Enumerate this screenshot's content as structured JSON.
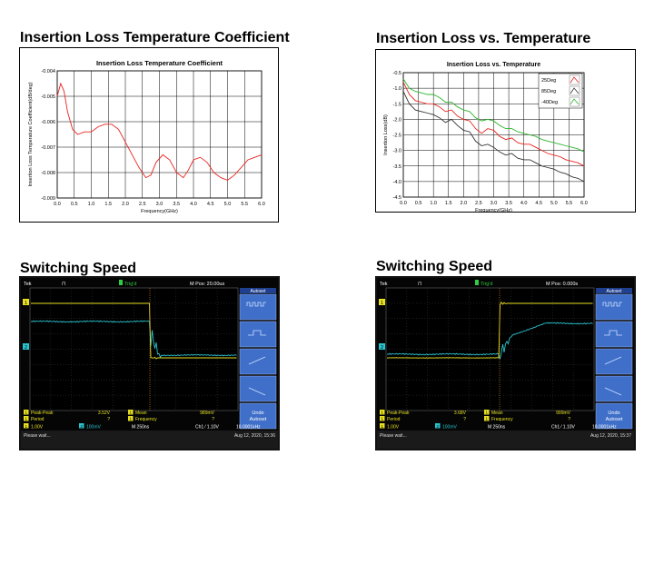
{
  "headings": {
    "coef": "Insertion Loss Temperature Coefficient",
    "temp": "Insertion Loss vs. Temperature",
    "sw1": "Switching Speed",
    "sw2": "Switching Speed"
  },
  "chart_data": [
    {
      "type": "line",
      "title": "Insertion Loss Temperature Coefficient",
      "xlabel": "Frequency(GHz)",
      "ylabel": "Insertion Loss Temperature Coefficient(dB/deg)",
      "xlim": [
        0.0,
        6.0
      ],
      "ylim": [
        -0.009,
        -0.004
      ],
      "x_ticks": [
        "0.0",
        "0.5",
        "1.0",
        "1.5",
        "2.0",
        "2.5",
        "3.0",
        "3.5",
        "4.0",
        "4.5",
        "5.0",
        "5.5",
        "6.0"
      ],
      "y_ticks": [
        "-0.004",
        "-0.005",
        "-0.006",
        "-0.007",
        "-0.008",
        "-0.009"
      ],
      "grid": true,
      "color": "#e8231f",
      "series": [
        {
          "x": [
            0.0,
            0.1,
            0.2,
            0.3,
            0.45,
            0.6,
            0.8,
            1.0,
            1.2,
            1.4,
            1.6,
            1.8,
            2.0,
            2.2,
            2.4,
            2.6,
            2.75,
            2.9,
            3.1,
            3.3,
            3.5,
            3.7,
            3.85,
            4.0,
            4.2,
            4.4,
            4.6,
            4.8,
            5.0,
            5.2,
            5.4,
            5.6,
            5.8,
            6.0
          ],
          "y": [
            -0.005,
            -0.0045,
            -0.0048,
            -0.0056,
            -0.0063,
            -0.0065,
            -0.0064,
            -0.0064,
            -0.0062,
            -0.0061,
            -0.0061,
            -0.0063,
            -0.0068,
            -0.0073,
            -0.0078,
            -0.0082,
            -0.0081,
            -0.0076,
            -0.0073,
            -0.0075,
            -0.008,
            -0.0082,
            -0.0079,
            -0.0075,
            -0.0074,
            -0.0076,
            -0.008,
            -0.0082,
            -0.0083,
            -0.0081,
            -0.0078,
            -0.0075,
            -0.0074,
            -0.0073
          ]
        }
      ]
    },
    {
      "type": "line",
      "title": "Insertion Loss vs. Temperature",
      "xlabel": "Frequency(GHz)",
      "ylabel": "Insertion Loss(dB)",
      "xlim": [
        0.0,
        6.0
      ],
      "ylim": [
        -4.5,
        -0.5
      ],
      "x_ticks": [
        "0.0",
        "0.5",
        "1.0",
        "1.5",
        "2.0",
        "2.5",
        "3.0",
        "3.5",
        "4.0",
        "4.5",
        "5.0",
        "5.5",
        "6.0"
      ],
      "y_ticks": [
        "-0.5",
        "-1.0",
        "-1.5",
        "-2.0",
        "-2.5",
        "-3.0",
        "-3.5",
        "-4.0",
        "-4.5"
      ],
      "grid": true,
      "legend": "top-right",
      "x": [
        0.0,
        0.2,
        0.4,
        0.6,
        0.8,
        1.0,
        1.2,
        1.4,
        1.6,
        1.8,
        2.0,
        2.2,
        2.4,
        2.6,
        2.8,
        3.0,
        3.2,
        3.4,
        3.6,
        3.8,
        4.0,
        4.2,
        4.4,
        4.6,
        4.8,
        5.0,
        5.2,
        5.4,
        5.6,
        5.8,
        6.0
      ],
      "series": [
        {
          "name": "25Deg",
          "color": "#e8231f",
          "y": [
            -0.8,
            -1.2,
            -1.4,
            -1.45,
            -1.5,
            -1.5,
            -1.6,
            -1.75,
            -1.7,
            -1.9,
            -2.0,
            -2.05,
            -2.3,
            -2.45,
            -2.3,
            -2.35,
            -2.55,
            -2.65,
            -2.6,
            -2.75,
            -2.8,
            -2.8,
            -2.9,
            -3.0,
            -3.1,
            -3.15,
            -3.2,
            -3.3,
            -3.35,
            -3.4,
            -3.5
          ]
        },
        {
          "name": "85Deg",
          "color": "#333333",
          "y": [
            -1.1,
            -1.5,
            -1.7,
            -1.75,
            -1.8,
            -1.85,
            -1.95,
            -2.1,
            -2.0,
            -2.2,
            -2.35,
            -2.4,
            -2.7,
            -2.85,
            -2.8,
            -2.9,
            -3.05,
            -3.15,
            -3.1,
            -3.25,
            -3.3,
            -3.3,
            -3.4,
            -3.5,
            -3.55,
            -3.6,
            -3.7,
            -3.75,
            -3.85,
            -3.9,
            -4.0
          ]
        },
        {
          "name": "-40Deg",
          "color": "#2db52d",
          "y": [
            -0.7,
            -1.0,
            -1.1,
            -1.15,
            -1.2,
            -1.2,
            -1.3,
            -1.45,
            -1.45,
            -1.6,
            -1.7,
            -1.75,
            -1.95,
            -2.05,
            -2.0,
            -2.05,
            -2.2,
            -2.3,
            -2.3,
            -2.4,
            -2.45,
            -2.5,
            -2.55,
            -2.65,
            -2.7,
            -2.75,
            -2.8,
            -2.85,
            -2.9,
            -2.95,
            -3.05
          ]
        }
      ]
    }
  ],
  "scopes": [
    {
      "header": {
        "mode": "Tek",
        "mark": "⊓",
        "trig_status": "Trig'd",
        "mpos": "M Pos: 20.00us"
      },
      "menu": {
        "title": "Autoset",
        "undo": "Undo Autoset"
      },
      "ch1_marker": "1",
      "ch2_marker": "2",
      "meas": [
        {
          "ch": "1",
          "name": "Peak-Peak",
          "value": "3.52V"
        },
        {
          "ch": "1",
          "name": "Period",
          "value": "?"
        },
        {
          "ch": "1",
          "name": "Mean",
          "value": "989mV"
        },
        {
          "ch": "1",
          "name": "Frequency",
          "value": "?"
        }
      ],
      "status": {
        "ch1": "1.00V",
        "ch2": "100mV",
        "timebase": "M 250ns",
        "trig": "Ch1 ⁄ 1.10V",
        "freq": "10.0001kHz"
      },
      "footer": {
        "msg": "Please wait...",
        "date": "Aug 12, 2020, 15:36"
      }
    },
    {
      "header": {
        "mode": "Tek",
        "mark": "⊓",
        "trig_status": "Trig'd",
        "mpos": "M Pos: 0.000s"
      },
      "menu": {
        "title": "Autoset",
        "undo": "Undo Autoset"
      },
      "ch1_marker": "1",
      "ch2_marker": "2",
      "meas": [
        {
          "ch": "1",
          "name": "Peak-Peak",
          "value": "3.68V"
        },
        {
          "ch": "1",
          "name": "Period",
          "value": "?"
        },
        {
          "ch": "1",
          "name": "Mean",
          "value": "999mV"
        },
        {
          "ch": "1",
          "name": "Frequency",
          "value": "?"
        }
      ],
      "status": {
        "ch1": "1.00V",
        "ch2": "100mV",
        "timebase": "M 250ns",
        "trig": "Ch1 ⁄ 1.10V",
        "freq": "10.0001kHz"
      },
      "footer": {
        "msg": "Please wait...",
        "date": "Aug 12, 2020, 15:37"
      }
    }
  ],
  "colors": {
    "ch1": "#e8e021",
    "ch2": "#29c4cf",
    "menu_bg": "#3f6fc9",
    "trig": "#2ecc40"
  }
}
